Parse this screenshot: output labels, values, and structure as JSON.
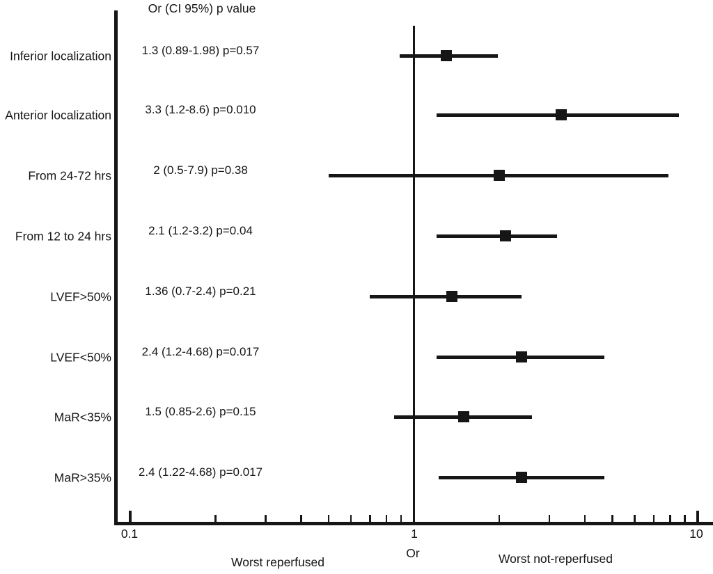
{
  "chart_data": {
    "type": "forest",
    "title": "Or (CI 95%) p value",
    "rows": [
      {
        "label": "Inferior localization",
        "or": 1.3,
        "ci_low": 0.89,
        "ci_high": 1.98,
        "p_value": 0.57,
        "display": "1.3 (0.89-1.98) p=0.57"
      },
      {
        "label": "Anterior localization",
        "or": 3.3,
        "ci_low": 1.2,
        "ci_high": 8.6,
        "p_value": 0.01,
        "display": "3.3 (1.2-8.6) p=0.010"
      },
      {
        "label": "From 24-72 hrs",
        "or": 2.0,
        "ci_low": 0.5,
        "ci_high": 7.9,
        "p_value": 0.38,
        "display": "2 (0.5-7.9) p=0.38"
      },
      {
        "label": "From 12 to 24 hrs",
        "or": 2.1,
        "ci_low": 1.2,
        "ci_high": 3.2,
        "p_value": 0.04,
        "display": "2.1 (1.2-3.2) p=0.04"
      },
      {
        "label": "LVEF>50%",
        "or": 1.36,
        "ci_low": 0.7,
        "ci_high": 2.4,
        "p_value": 0.21,
        "display": "1.36 (0.7-2.4) p=0.21"
      },
      {
        "label": "LVEF<50%",
        "or": 2.4,
        "ci_low": 1.2,
        "ci_high": 4.68,
        "p_value": 0.017,
        "display": "2.4 (1.2-4.68) p=0.017"
      },
      {
        "label": "MaR<35%",
        "or": 1.5,
        "ci_low": 0.85,
        "ci_high": 2.6,
        "p_value": 0.15,
        "display": "1.5 (0.85-2.6) p=0.15"
      },
      {
        "label": "MaR>35%",
        "or": 2.4,
        "ci_low": 1.22,
        "ci_high": 4.68,
        "p_value": 0.017,
        "display": "2.4 (1.22-4.68) p=0.017"
      }
    ],
    "x_axis": {
      "scale": "log",
      "min": 0.1,
      "max": 10,
      "label": "Or",
      "major_ticks": [
        0.1,
        10
      ],
      "tick_labels": {
        "t01": "0.1",
        "t1": "1",
        "t10": "10"
      },
      "minor_ticks": [
        0.2,
        0.3,
        0.4,
        0.5,
        0.6,
        0.7,
        0.8,
        0.9,
        2,
        3,
        4,
        5,
        6,
        7,
        8,
        9
      ]
    },
    "reference_line_value": 1,
    "direction_labels": {
      "left": "Worst reperfused",
      "right": "Worst not-reperfused"
    },
    "colors": {
      "ink": "#161616",
      "background": "#ffffff"
    }
  }
}
